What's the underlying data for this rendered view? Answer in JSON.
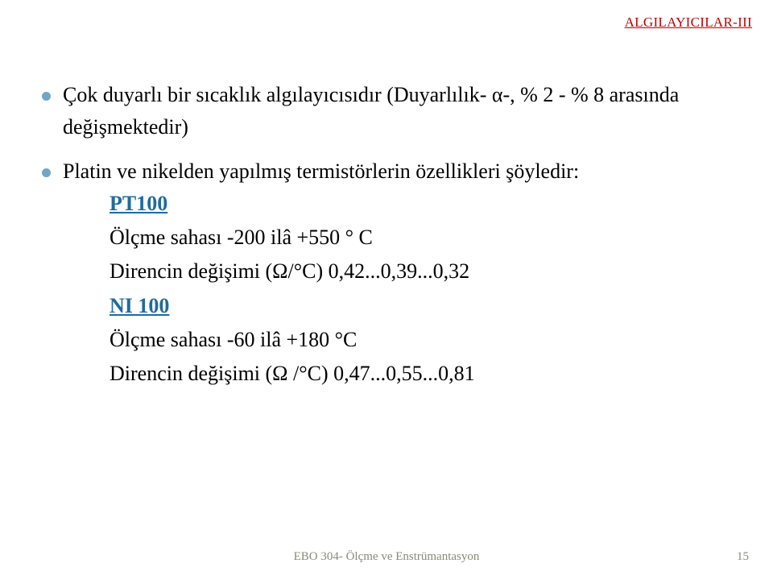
{
  "header": {
    "label": "ALGILAYICILAR-III",
    "color": "#c00000"
  },
  "bullets": [
    {
      "text": "Çok duyarlı bir sıcaklık algılayıcısıdır (Duyarlılık- α-, % 2 - % 8 arasında değişmektedir)"
    },
    {
      "text_lead": "Platin ve nikelden yapılmış termistörlerin özellikleri şöyledir:",
      "groups": [
        {
          "heading": "PT100",
          "lines": [
            "Ölçme sahası -200 ilâ +550 ° C",
            "Direncin değişimi (Ω/°C) 0,42...0,39...0,32"
          ]
        },
        {
          "heading": "NI 100",
          "lines": [
            "Ölçme sahası -60 ilâ +180 °C",
            "Direncin değişimi (Ω /°C) 0,47...0,55...0,81"
          ]
        }
      ]
    }
  ],
  "footer": {
    "text": "EBO 304- Ölçme ve Enstrümantasyon",
    "page": "15"
  },
  "style": {
    "bullet_color": "#72a6c9",
    "link_color": "#1f6b9e",
    "body_fontsize": 26,
    "header_fontsize": 17,
    "footer_fontsize": 15,
    "footer_color": "#8a8a78",
    "background": "#ffffff"
  }
}
